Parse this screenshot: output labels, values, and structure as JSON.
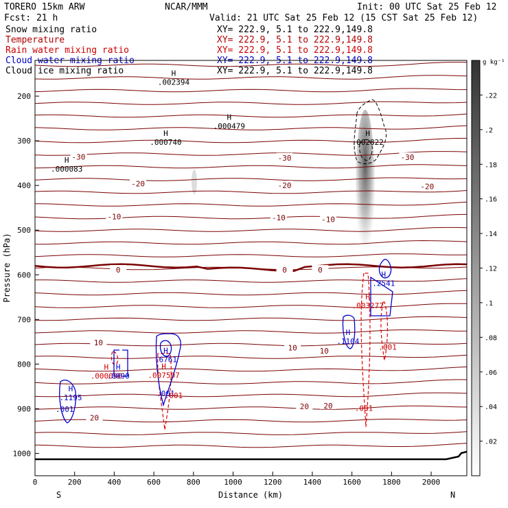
{
  "header": {
    "model": "TORERO  15km ARW",
    "center": "NCAR/MMM",
    "init": "Init: 00 UTC Sat 25 Feb 12",
    "fcst": "Fcst:   21 h",
    "valid": "Valid: 21 UTC Sat 25 Feb 12 (15 CST Sat 25 Feb 12)"
  },
  "fields": [
    {
      "name": "Snow mixing ratio",
      "color": "#000000",
      "xy": ""
    },
    {
      "name": "Temperature",
      "color": "#b00000",
      "xy": "XY= 222.9,  5.1 to 222.9,149.8"
    },
    {
      "name": "Rain water mixing ratio",
      "color": "#cc0000",
      "xy": "XY= 222.9,  5.1 to 222.9,149.8"
    },
    {
      "name": "Cloud water mixing ratio",
      "color": "#0000c0",
      "xy": "XY= 222.9,  5.1 to 222.9,149.8"
    },
    {
      "name": "Cloud ice mixing ratio",
      "color": "#000000",
      "xy": "XY= 222.9,  5.1 to 222.9,149.8"
    }
  ],
  "xy_top": "XY= 222.9,  5.1 to 222.9,149.8",
  "chart_data": {
    "type": "contour",
    "xlabel": "Distance (km)",
    "ylabel": "Pressure (hPa)",
    "xlim": [
      0,
      2180
    ],
    "ylim": [
      1050,
      120
    ],
    "xticks": [
      0,
      200,
      400,
      600,
      800,
      1000,
      1200,
      1400,
      1600,
      1800,
      2000
    ],
    "yticks": [
      200,
      300,
      400,
      500,
      600,
      700,
      800,
      900,
      1000
    ],
    "end_labels": {
      "left": "S",
      "right": "N"
    },
    "colorbar": {
      "unit": "g kg⁻¹",
      "ticks": [
        ".02",
        ".04",
        ".06",
        ".08",
        ".1",
        ".12",
        ".14",
        ".16",
        ".18",
        ".2",
        ".22"
      ],
      "tick_values": [
        0.02,
        0.04,
        0.06,
        0.08,
        0.1,
        0.12,
        0.14,
        0.16,
        0.18,
        0.2,
        0.22
      ],
      "range": [
        0,
        0.24
      ]
    },
    "temperature_contours": [
      {
        "label": "-30",
        "points": [
          [
            220,
            336
          ],
          [
            1260,
            338
          ],
          [
            1880,
            337
          ]
        ]
      },
      {
        "label": "-20",
        "points": [
          [
            520,
            396
          ],
          [
            1260,
            400
          ],
          [
            1980,
            402
          ]
        ]
      },
      {
        "label": "-10",
        "points": [
          [
            400,
            470
          ],
          [
            1230,
            472
          ],
          [
            1480,
            476
          ]
        ]
      },
      {
        "label": "0",
        "points": [
          [
            420,
            589
          ],
          [
            1260,
            589
          ],
          [
            1440,
            589
          ]
        ]
      },
      {
        "label": "10",
        "points": [
          [
            320,
            752
          ],
          [
            1300,
            763
          ],
          [
            1460,
            770
          ]
        ]
      },
      {
        "label": "20",
        "points": [
          [
            300,
            920
          ],
          [
            1360,
            895
          ],
          [
            1480,
            893
          ]
        ]
      }
    ],
    "maxima": [
      {
        "field": "snow",
        "label": ".002394",
        "x": 700,
        "p": 164
      },
      {
        "field": "snow",
        "label": ".000479",
        "x": 980,
        "p": 262
      },
      {
        "field": "snow",
        "label": ".000740",
        "x": 660,
        "p": 298
      },
      {
        "field": "snow",
        "label": ".000083",
        "x": 160,
        "p": 358
      },
      {
        "field": "snow",
        "label": ".002822",
        "x": 1680,
        "p": 298
      },
      {
        "field": "rain",
        "label": ".003277",
        "x": 1680,
        "p": 664
      },
      {
        "field": "rain",
        "label": ".007507",
        "x": 650,
        "p": 820
      },
      {
        "field": "rain",
        "label": ".000090",
        "x": 360,
        "p": 822
      },
      {
        "field": "cloud",
        "label": ".2541",
        "x": 1760,
        "p": 614
      },
      {
        "field": "cloud",
        "label": ".1104",
        "x": 1580,
        "p": 744
      },
      {
        "field": "cloud",
        "label": ".6761",
        "x": 660,
        "p": 785
      },
      {
        "field": "cloud",
        "label": ".0090",
        "x": 420,
        "p": 822
      },
      {
        "field": "cloud",
        "label": ".1195",
        "x": 180,
        "p": 870
      }
    ],
    "contour_level_labels": [
      {
        "field": "cloud",
        "label": ".001",
        "x": 660,
        "p": 872
      },
      {
        "field": "cloud",
        "label": ".001",
        "x": 150,
        "p": 907
      },
      {
        "field": "rain",
        "label": ".001",
        "x": 700,
        "p": 876
      },
      {
        "field": "rain",
        "label": ".001",
        "x": 1660,
        "p": 905
      },
      {
        "field": "rain",
        "label": ".001",
        "x": 1780,
        "p": 768
      }
    ]
  }
}
